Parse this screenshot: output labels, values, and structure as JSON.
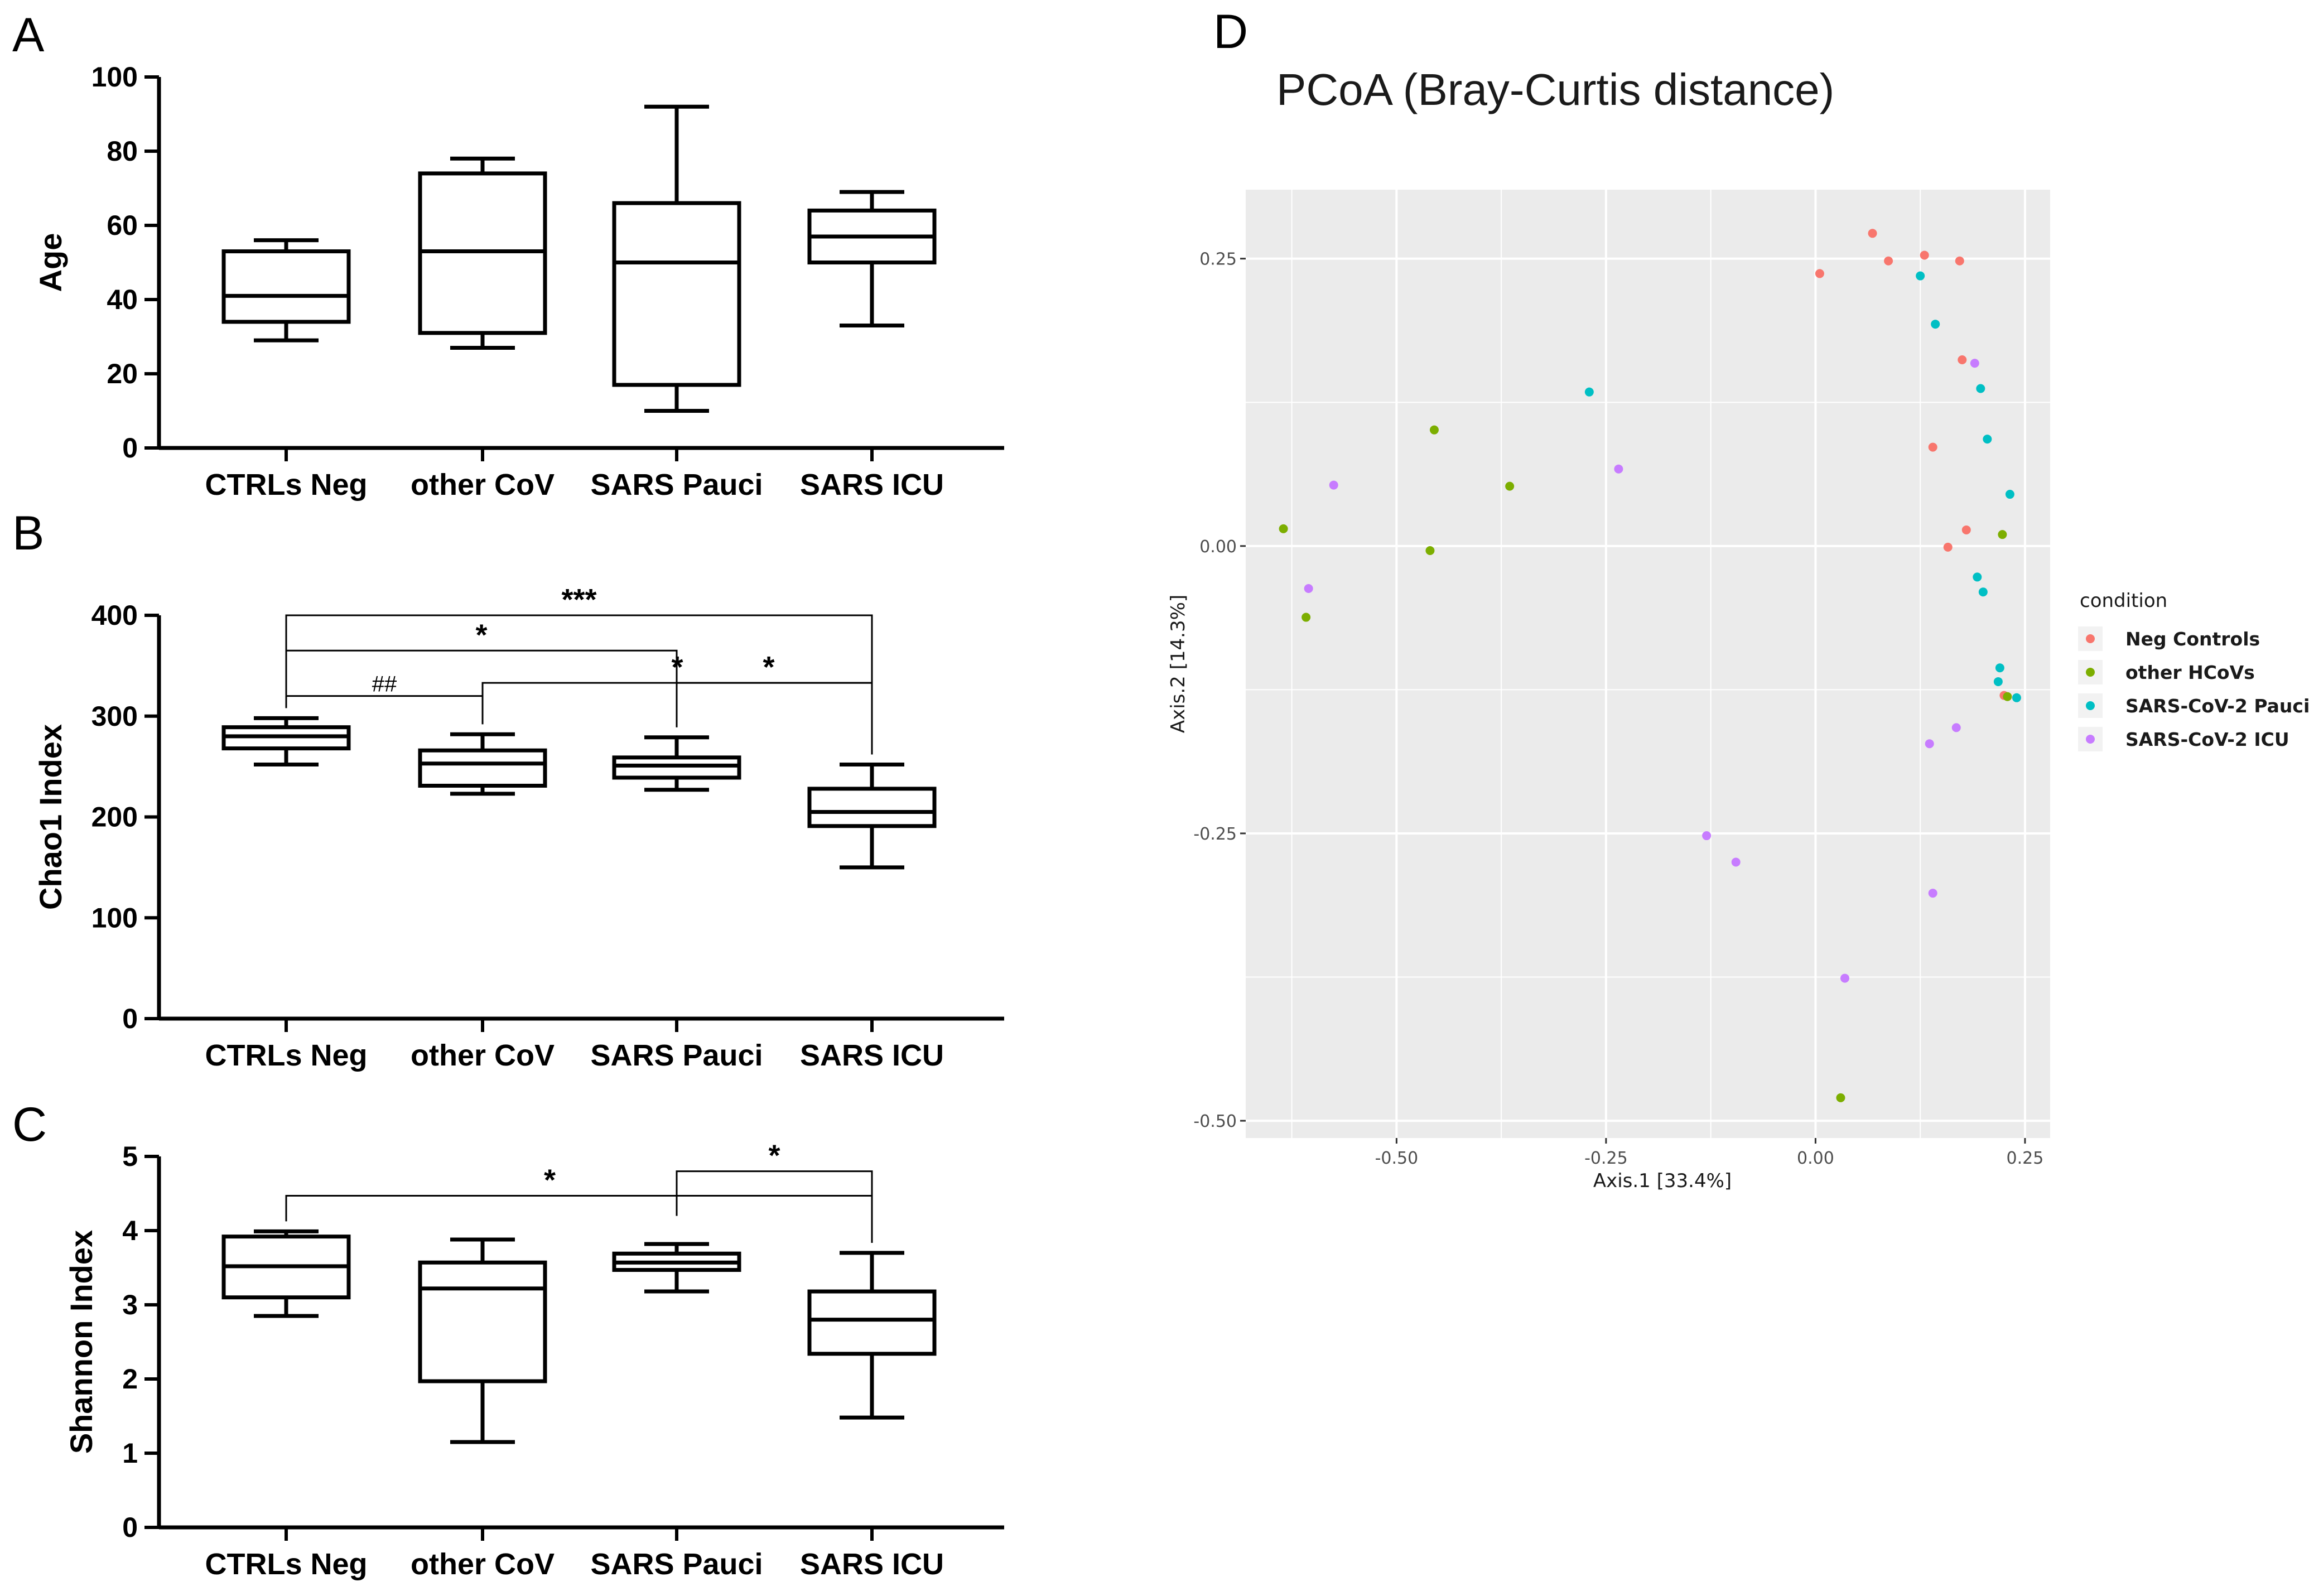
{
  "panels": [
    {
      "id": "A",
      "letter": "A",
      "ylabel": "Age",
      "ylim": [
        0,
        100
      ],
      "yticks": [
        0,
        20,
        40,
        60,
        80,
        100
      ],
      "categories": [
        "CTRLs Neg",
        "other CoV",
        "SARS Pauci",
        "SARS ICU"
      ],
      "boxes": [
        {
          "min": 29,
          "q1": 34,
          "median": 41,
          "q3": 53,
          "max": 56
        },
        {
          "min": 27,
          "q1": 31,
          "median": 53,
          "q3": 74,
          "max": 78
        },
        {
          "min": 10,
          "q1": 17,
          "median": 50,
          "q3": 66,
          "max": 92
        },
        {
          "min": 33,
          "q1": 50,
          "median": 57,
          "q3": 64,
          "max": 69
        }
      ],
      "brackets": []
    },
    {
      "id": "B",
      "letter": "B",
      "ylabel": "Chao1 Index",
      "ylim": [
        0,
        400
      ],
      "yticks": [
        0,
        100,
        200,
        300,
        400
      ],
      "categories": [
        "CTRLs Neg",
        "other CoV",
        "SARS Pauci",
        "SARS ICU"
      ],
      "boxes": [
        {
          "min": 252,
          "q1": 268,
          "median": 280,
          "q3": 289,
          "max": 298
        },
        {
          "min": 223,
          "q1": 231,
          "median": 253,
          "q3": 266,
          "max": 282
        },
        {
          "min": 227,
          "q1": 239,
          "median": 251,
          "q3": 259,
          "max": 279
        },
        {
          "min": 150,
          "q1": 191,
          "median": 205,
          "q3": 228,
          "max": 252
        }
      ],
      "brackets": [
        {
          "from": 0,
          "to": 3,
          "level": 400,
          "label": "***",
          "style": "star"
        },
        {
          "from": 0,
          "to": 2,
          "level": 365,
          "label": "*",
          "style": "star"
        },
        {
          "from": 0,
          "to": 1,
          "level": 320,
          "label": "##",
          "style": "hash"
        },
        {
          "from": 1,
          "to": 3,
          "level": 333,
          "label": "*",
          "style": "star"
        },
        {
          "from": 2,
          "to": 3,
          "level": 333,
          "label": "*",
          "style": "star",
          "label_offset": -10
        }
      ]
    },
    {
      "id": "C",
      "letter": "C",
      "ylabel": "Shannon Index",
      "ylim": [
        0,
        5
      ],
      "yticks": [
        0,
        1,
        2,
        3,
        4,
        5
      ],
      "categories": [
        "CTRLs Neg",
        "other CoV",
        "SARS Pauci",
        "SARS ICU"
      ],
      "boxes": [
        {
          "min": 2.85,
          "q1": 3.1,
          "median": 3.52,
          "q3": 3.92,
          "max": 3.99
        },
        {
          "min": 1.15,
          "q1": 1.97,
          "median": 3.22,
          "q3": 3.57,
          "max": 3.88
        },
        {
          "min": 3.18,
          "q1": 3.47,
          "median": 3.57,
          "q3": 3.69,
          "max": 3.82
        },
        {
          "min": 1.48,
          "q1": 2.34,
          "median": 2.8,
          "q3": 3.18,
          "max": 3.7
        }
      ],
      "brackets": [
        {
          "from": 0,
          "to": 3,
          "level": 4.47,
          "label": "*",
          "style": "star",
          "label_pos": 0.45
        },
        {
          "from": 2,
          "to": 3,
          "level": 4.8,
          "label": "*",
          "style": "star"
        }
      ]
    }
  ],
  "pcoa": {
    "letter": "D",
    "title": "PCoA (Bray-Curtis distance)",
    "xlabel": "Axis.1   [33.4%]",
    "ylabel": "Axis.2   [14.3%]",
    "xlim": [
      -0.68,
      0.28
    ],
    "ylim": [
      -0.515,
      0.31
    ],
    "xticks": [
      -0.5,
      -0.25,
      0.0,
      0.25
    ],
    "xtick_labels": [
      "-0.50",
      "-0.25",
      "0.00",
      "0.25"
    ],
    "yticks": [
      -0.5,
      -0.25,
      0.0,
      0.25
    ],
    "ytick_labels": [
      "-0.50",
      "-0.25",
      "0.00",
      "0.25"
    ],
    "panel_bg": "#ebebeb",
    "grid_color": "#ffffff",
    "legend": {
      "title": "condition",
      "items": [
        {
          "label": "Neg Controls",
          "color": "#f8766d"
        },
        {
          "label": " other HCoVs",
          "color": "#7cae00"
        },
        {
          "label": "SARS-CoV-2 Pauci",
          "color": "#00bfc4"
        },
        {
          "label": "SARS-CoV-2 ICU",
          "color": "#c77cff"
        }
      ]
    },
    "series": [
      {
        "name": "Neg Controls",
        "color": "#f8766d",
        "points": [
          [
            0.068,
            0.272
          ],
          [
            0.13,
            0.253
          ],
          [
            0.172,
            0.248
          ],
          [
            0.087,
            0.248
          ],
          [
            0.005,
            0.237
          ],
          [
            0.175,
            0.162
          ],
          [
            0.14,
            0.086
          ],
          [
            0.18,
            0.014
          ],
          [
            0.158,
            -0.001
          ],
          [
            0.225,
            -0.13
          ]
        ]
      },
      {
        "name": "other HCoVs",
        "color": "#7cae00",
        "points": [
          [
            -0.455,
            0.101
          ],
          [
            -0.365,
            0.052
          ],
          [
            -0.635,
            0.015
          ],
          [
            -0.46,
            -0.004
          ],
          [
            -0.608,
            -0.062
          ],
          [
            0.223,
            0.01
          ],
          [
            0.03,
            -0.48
          ],
          [
            0.229,
            -0.131
          ]
        ]
      },
      {
        "name": "SARS-CoV-2 Pauci",
        "color": "#00bfc4",
        "points": [
          [
            0.125,
            0.235
          ],
          [
            0.143,
            0.193
          ],
          [
            0.197,
            0.137
          ],
          [
            -0.27,
            0.134
          ],
          [
            0.205,
            0.093
          ],
          [
            0.232,
            0.045
          ],
          [
            0.193,
            -0.027
          ],
          [
            0.2,
            -0.04
          ],
          [
            0.22,
            -0.106
          ],
          [
            0.218,
            -0.118
          ],
          [
            0.24,
            -0.132
          ]
        ]
      },
      {
        "name": "SARS-CoV-2 ICU",
        "color": "#c77cff",
        "points": [
          [
            0.19,
            0.159
          ],
          [
            -0.575,
            0.053
          ],
          [
            -0.235,
            0.067
          ],
          [
            -0.605,
            -0.037
          ],
          [
            0.168,
            -0.158
          ],
          [
            0.136,
            -0.172
          ],
          [
            -0.13,
            -0.252
          ],
          [
            -0.095,
            -0.275
          ],
          [
            0.14,
            -0.302
          ],
          [
            0.035,
            -0.376
          ]
        ]
      }
    ]
  }
}
